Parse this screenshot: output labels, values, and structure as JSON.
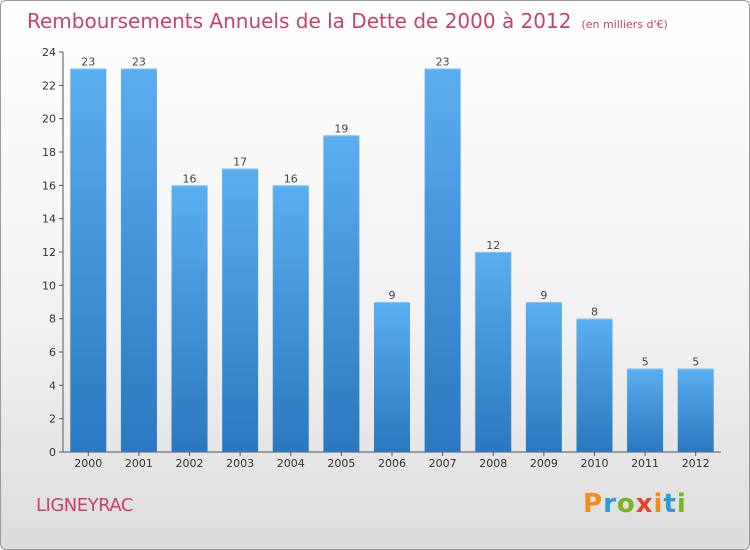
{
  "header": {
    "title": "Remboursements Annuels de la Dette de 2000 à 2012",
    "subtitle": "(en milliers d'€)"
  },
  "footer": {
    "commune": "LIGNEYRAC",
    "logo_text": "Proxiti",
    "logo_colors": [
      "#f28c1a",
      "#2a9bd6",
      "#7ab51d",
      "#e8412c",
      "#f28c1a",
      "#2a9bd6",
      "#7ab51d"
    ]
  },
  "chart_data": {
    "type": "bar",
    "categories": [
      "2000",
      "2001",
      "2002",
      "2003",
      "2004",
      "2005",
      "2006",
      "2007",
      "2008",
      "2009",
      "2010",
      "2011",
      "2012"
    ],
    "values": [
      23,
      23,
      16,
      17,
      16,
      19,
      9,
      23,
      12,
      9,
      8,
      5,
      5
    ],
    "ylim": [
      0,
      24
    ],
    "yticks": [
      0,
      2,
      4,
      6,
      8,
      10,
      12,
      14,
      16,
      18,
      20,
      22,
      24
    ],
    "grid": false,
    "bar_color": "#3a8fd8"
  }
}
